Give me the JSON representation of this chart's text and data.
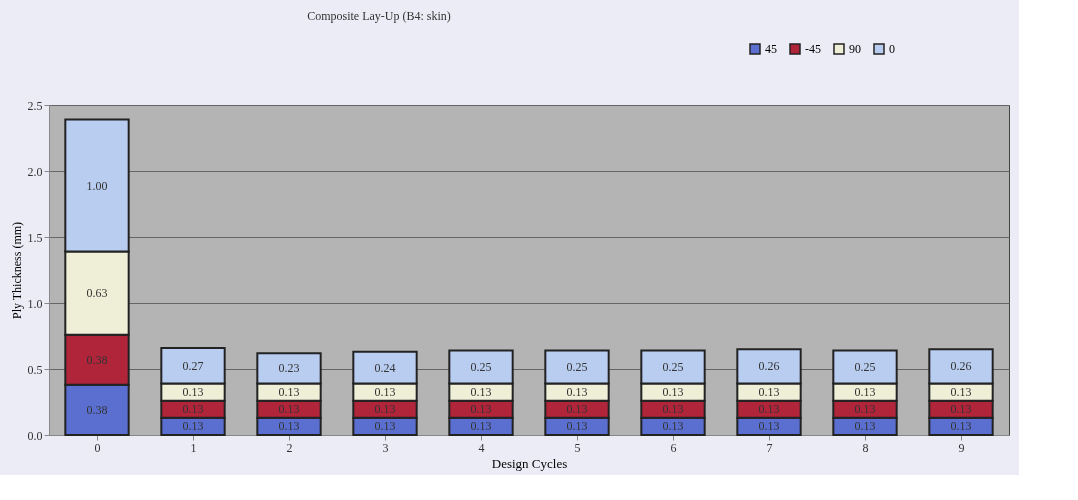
{
  "chart_data": {
    "type": "bar",
    "stacked": true,
    "title": "Composite Lay-Up (B4: skin)",
    "xlabel": "Design Cycles",
    "ylabel": "Ply Thickness (mm)",
    "categories": [
      "0",
      "1",
      "2",
      "3",
      "4",
      "5",
      "6",
      "7",
      "8",
      "9"
    ],
    "series": [
      {
        "name": "45",
        "color": "#5a6fd0",
        "values": [
          0.38,
          0.13,
          0.13,
          0.13,
          0.13,
          0.13,
          0.13,
          0.13,
          0.13,
          0.13
        ],
        "value_labels": [
          "0.38",
          "0.13",
          "0.13",
          "0.13",
          "0.13",
          "0.13",
          "0.13",
          "0.13",
          "0.13",
          "0.13"
        ]
      },
      {
        "name": "-45",
        "color": "#b0253a",
        "values": [
          0.38,
          0.13,
          0.13,
          0.13,
          0.13,
          0.13,
          0.13,
          0.13,
          0.13,
          0.13
        ],
        "value_labels": [
          "0.38",
          "0.13",
          "0.13",
          "0.13",
          "0.13",
          "0.13",
          "0.13",
          "0.13",
          "0.13",
          "0.13"
        ]
      },
      {
        "name": "90",
        "color": "#efefd8",
        "values": [
          0.63,
          0.13,
          0.13,
          0.13,
          0.13,
          0.13,
          0.13,
          0.13,
          0.13,
          0.13
        ],
        "value_labels": [
          "0.63",
          "0.13",
          "0.13",
          "0.13",
          "0.13",
          "0.13",
          "0.13",
          "0.13",
          "0.13",
          "0.13"
        ]
      },
      {
        "name": "0",
        "color": "#b8cdf0",
        "values": [
          1.0,
          0.27,
          0.23,
          0.24,
          0.25,
          0.25,
          0.25,
          0.26,
          0.25,
          0.26
        ],
        "value_labels": [
          "1.00",
          "0.27",
          "0.23",
          "0.24",
          "0.25",
          "0.25",
          "0.25",
          "0.26",
          "0.25",
          "0.26"
        ]
      }
    ],
    "ylim": [
      0,
      2.5
    ],
    "yticks": [
      {
        "value": 0,
        "label": "0.0"
      },
      {
        "value": 0.5,
        "label": "0.5"
      },
      {
        "value": 1,
        "label": "1.0"
      },
      {
        "value": 1.5,
        "label": "1.5"
      },
      {
        "value": 2,
        "label": "2.0"
      },
      {
        "value": 2.5,
        "label": "2.5"
      }
    ],
    "grid": "y",
    "legend": "top right"
  }
}
